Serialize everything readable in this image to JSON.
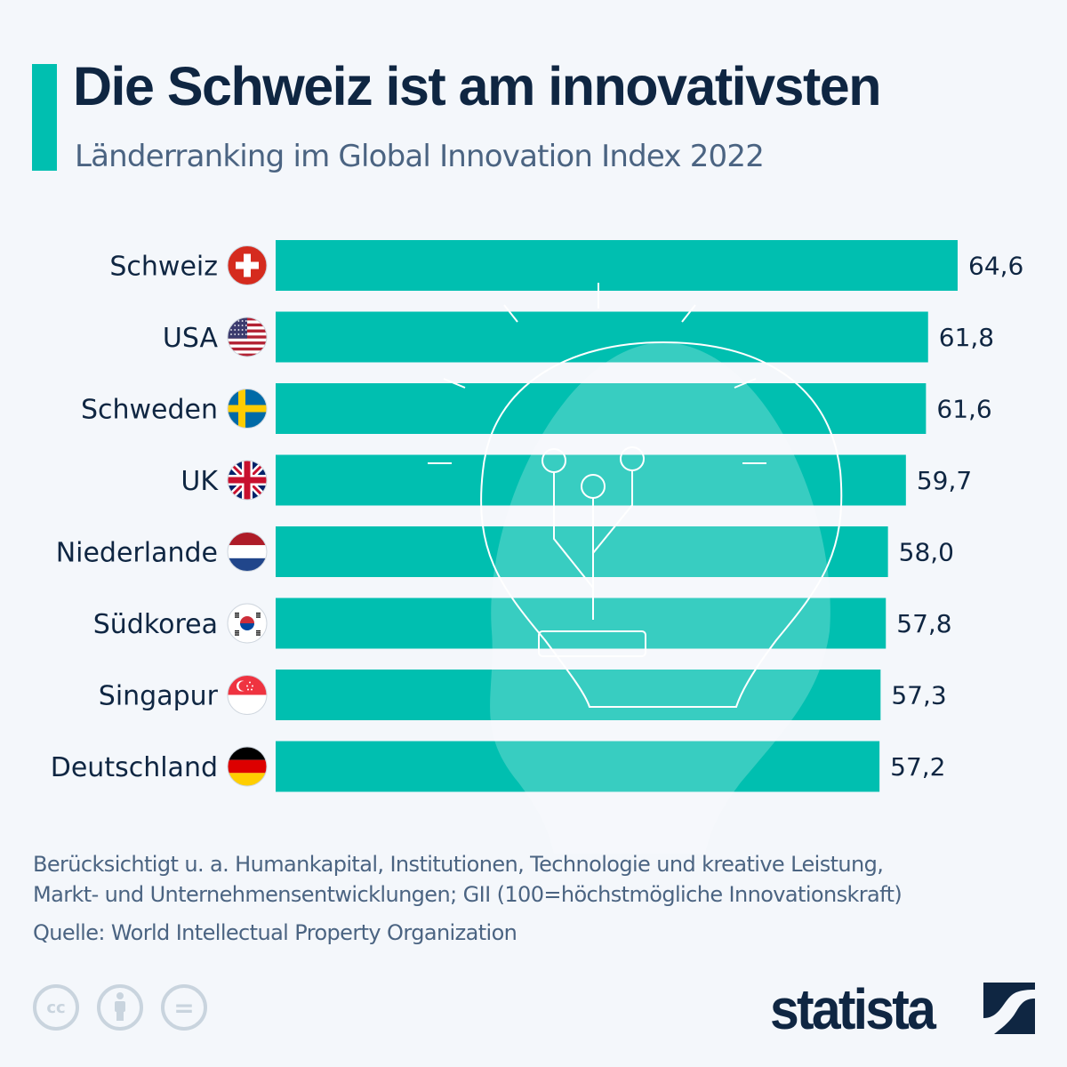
{
  "header": {
    "title": "Die Schweiz ist am innovativsten",
    "subtitle": "Länderranking im Global Innovation Index 2022"
  },
  "chart_data": {
    "type": "bar",
    "orientation": "horizontal",
    "title": "Die Schweiz ist am innovativsten",
    "subtitle": "Länderranking im Global Innovation Index 2022",
    "categories": [
      "Schweiz",
      "USA",
      "Schweden",
      "UK",
      "Niederlande",
      "Südkorea",
      "Singapur",
      "Deutschland"
    ],
    "flags": [
      "flag-switzerland",
      "flag-usa",
      "flag-sweden",
      "flag-uk",
      "flag-netherlands",
      "flag-south-korea",
      "flag-singapore",
      "flag-germany"
    ],
    "values": [
      64.6,
      61.8,
      61.6,
      59.7,
      58.0,
      57.8,
      57.3,
      57.2
    ],
    "value_labels": [
      "64,6",
      "61,8",
      "61,6",
      "59,7",
      "58,0",
      "57,8",
      "57,3",
      "57,2"
    ],
    "xlim": [
      0,
      64.6
    ],
    "xlabel": "",
    "ylabel": "",
    "grid": false,
    "bar_color": "#00bfb0",
    "background_illustration": "lightbulb-icon"
  },
  "footer": {
    "note_line1": "Berücksichtigt u. a. Humankapital, Institutionen, Technologie und kreative Leistung,",
    "note_line2": "Markt- und Unternehmensentwicklungen; GII (100=höchstmögliche Innovationskraft)",
    "source": "Quelle: World Intellectual Property Organization",
    "license_icons": [
      "cc-icon",
      "attribution-icon",
      "no-derivatives-icon"
    ],
    "cc_text": "cc",
    "nd_text": "=",
    "brand": "statista"
  },
  "colors": {
    "accent": "#00bfb0",
    "title": "#0f2642",
    "subtitle": "#4b6482",
    "background": "#f4f7fb"
  }
}
